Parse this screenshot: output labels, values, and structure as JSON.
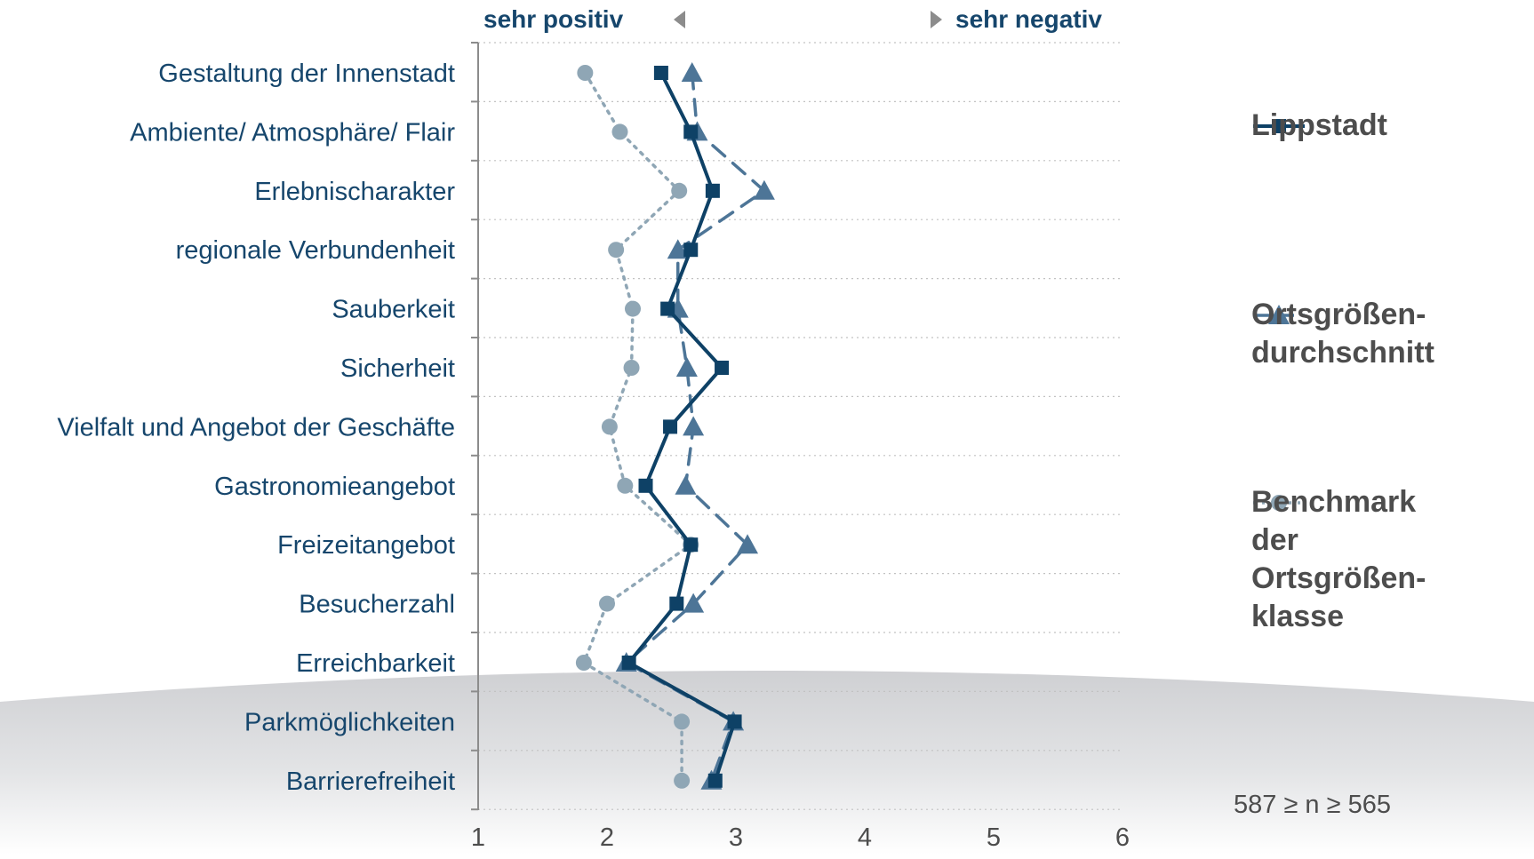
{
  "header": {
    "left_label": "sehr positiv",
    "right_label": "sehr negativ",
    "left_arrow_icon": "triangle-left-icon",
    "right_arrow_icon": "triangle-right-icon"
  },
  "chart_data": {
    "type": "line",
    "orientation": "horizontal-values-vertical-categories",
    "categories": [
      "Gestaltung der Innenstadt",
      "Ambiente/ Atmosphäre/ Flair",
      "Erlebnischarakter",
      "regionale Verbundenheit",
      "Sauberkeit",
      "Sicherheit",
      "Vielfalt und Angebot der Geschäfte",
      "Gastronomieangebot",
      "Freizeitangebot",
      "Besucherzahl",
      "Erreichbarkeit",
      "Parkmöglichkeiten",
      "Barrierefreiheit"
    ],
    "xlim": [
      1,
      6
    ],
    "xticks": [
      "1",
      "2",
      "3",
      "4",
      "5",
      "6"
    ],
    "grid": true,
    "series": [
      {
        "name": "Lippstadt",
        "color": "#0e4166",
        "marker": "square",
        "line": "solid",
        "values": [
          2.42,
          2.65,
          2.82,
          2.65,
          2.47,
          2.89,
          2.49,
          2.3,
          2.65,
          2.54,
          2.17,
          2.99,
          2.84
        ]
      },
      {
        "name": "Ortsgrößen-\ndurchschnitt",
        "color": "#4d7597",
        "marker": "triangle",
        "line": "dashed",
        "values": [
          2.66,
          2.7,
          3.22,
          2.55,
          2.55,
          2.62,
          2.67,
          2.61,
          3.09,
          2.67,
          2.15,
          2.98,
          2.81
        ]
      },
      {
        "name": "Benchmark\nder\nOrtsgrößen-\nklasse",
        "color": "#8fa6b5",
        "marker": "circle",
        "line": "dotted",
        "values": [
          1.83,
          2.1,
          2.56,
          2.07,
          2.2,
          2.19,
          2.02,
          2.14,
          2.65,
          2.0,
          1.82,
          2.58,
          2.58
        ]
      }
    ]
  },
  "sample_note": "587 ≥ n ≥ 565"
}
